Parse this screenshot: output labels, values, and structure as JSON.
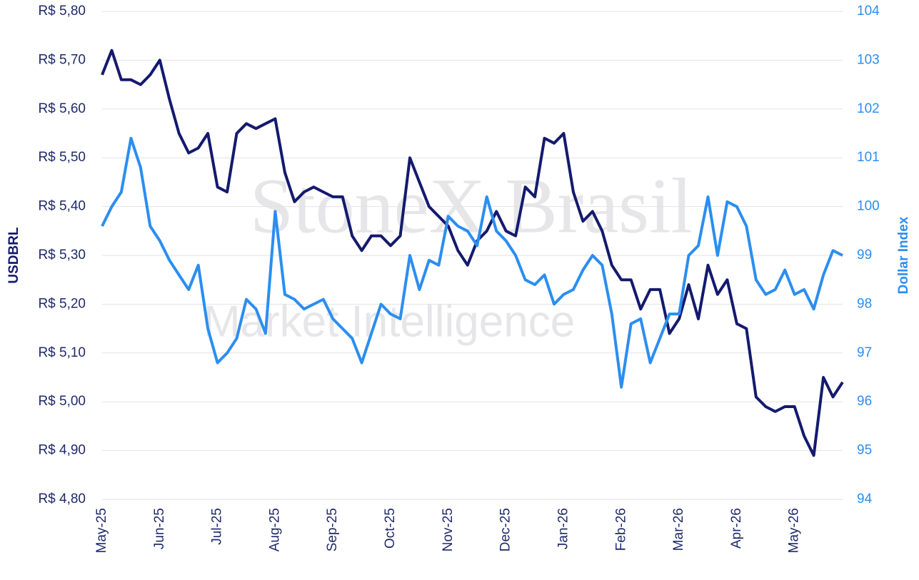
{
  "chart_data": {
    "type": "line",
    "watermark": [
      "StoneX Brasil",
      "Market Intelligence"
    ],
    "ylabel": "USDBRL",
    "y2label": "Dollar Index",
    "categories": [
      "May-25",
      null,
      null,
      null,
      null,
      null,
      "Jun-25",
      null,
      null,
      null,
      null,
      null,
      "Jul-25",
      null,
      null,
      null,
      null,
      null,
      "Aug-25",
      null,
      null,
      null,
      null,
      null,
      "Sep-25",
      null,
      null,
      null,
      null,
      null,
      "Oct-25",
      null,
      null,
      null,
      null,
      null,
      "Nov-25",
      null,
      null,
      null,
      null,
      null,
      "Dec-25",
      null,
      null,
      null,
      null,
      null,
      "Jan-26",
      null,
      null,
      null,
      null,
      null,
      "Feb-26",
      null,
      null,
      null,
      null,
      null,
      "Mar-26",
      null,
      null,
      null,
      null,
      null,
      "Apr-26",
      null,
      null,
      null,
      null,
      null,
      "May-26",
      null,
      null,
      null,
      null,
      null
    ],
    "series": [
      {
        "name": "USDBRL",
        "color": "#141a6e",
        "axis": "y",
        "values": [
          5.67,
          5.72,
          5.66,
          5.66,
          5.65,
          5.67,
          5.7,
          5.62,
          5.55,
          5.51,
          5.52,
          5.55,
          5.44,
          5.43,
          5.55,
          5.57,
          5.56,
          5.57,
          5.58,
          5.47,
          5.41,
          5.43,
          5.44,
          5.43,
          5.42,
          5.42,
          5.34,
          5.31,
          5.34,
          5.34,
          5.32,
          5.34,
          5.5,
          5.45,
          5.4,
          5.38,
          5.36,
          5.31,
          5.28,
          5.33,
          5.35,
          5.39,
          5.35,
          5.34,
          5.44,
          5.42,
          5.54,
          5.53,
          5.55,
          5.43,
          5.37,
          5.39,
          5.35,
          5.28,
          5.25,
          5.25,
          5.19,
          5.23,
          5.23,
          5.14,
          5.17,
          5.24,
          5.17,
          5.28,
          5.22,
          5.25,
          5.16,
          5.15,
          5.01,
          4.99,
          4.98,
          4.99,
          4.99,
          4.93,
          4.89,
          5.05,
          5.01,
          5.04
        ]
      },
      {
        "name": "Dollar Index",
        "color": "#2b8ef0",
        "axis": "y2",
        "values": [
          99.6,
          100.0,
          100.3,
          101.4,
          100.8,
          99.6,
          99.3,
          98.9,
          98.6,
          98.3,
          98.8,
          97.5,
          96.8,
          97.0,
          97.3,
          98.1,
          97.9,
          97.4,
          99.9,
          98.2,
          98.1,
          97.9,
          98.0,
          98.1,
          97.7,
          97.5,
          97.3,
          96.8,
          97.4,
          98.0,
          97.8,
          97.7,
          99.0,
          98.3,
          98.9,
          98.8,
          99.8,
          99.6,
          99.5,
          99.2,
          100.2,
          99.5,
          99.3,
          99.0,
          98.5,
          98.4,
          98.6,
          98.0,
          98.2,
          98.3,
          98.7,
          99.0,
          98.8,
          97.8,
          96.3,
          97.6,
          97.7,
          96.8,
          97.3,
          97.8,
          97.8,
          99.0,
          99.2,
          100.2,
          99.0,
          100.1,
          100.0,
          99.6,
          98.5,
          98.2,
          98.3,
          98.7,
          98.2,
          98.3,
          97.9,
          98.6,
          99.1,
          99.0
        ]
      }
    ],
    "ylim": [
      4.8,
      5.8
    ],
    "yticks": [
      {
        "value": 4.8,
        "label": "R$ 4,80"
      },
      {
        "value": 4.9,
        "label": "R$ 4,90"
      },
      {
        "value": 5.0,
        "label": "R$ 5,00"
      },
      {
        "value": 5.1,
        "label": "R$ 5,10"
      },
      {
        "value": 5.2,
        "label": "R$ 5,20"
      },
      {
        "value": 5.3,
        "label": "R$ 5,30"
      },
      {
        "value": 5.4,
        "label": "R$ 5,40"
      },
      {
        "value": 5.5,
        "label": "R$ 5,50"
      },
      {
        "value": 5.6,
        "label": "R$ 5,60"
      },
      {
        "value": 5.7,
        "label": "R$ 5,70"
      },
      {
        "value": 5.8,
        "label": "R$ 5,80"
      }
    ],
    "y2lim": [
      94,
      104
    ],
    "y2ticks": [
      94,
      95,
      96,
      97,
      98,
      99,
      100,
      101,
      102,
      103,
      104
    ],
    "grid": true
  }
}
